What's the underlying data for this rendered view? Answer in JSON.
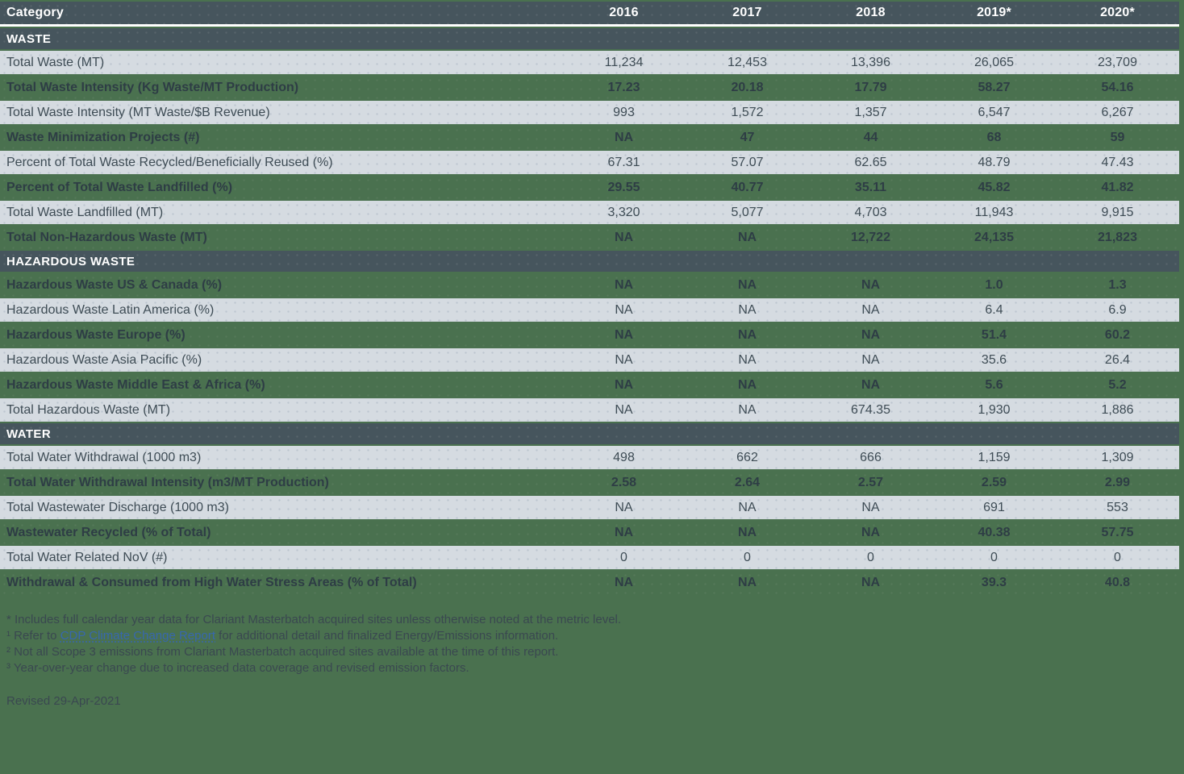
{
  "colors": {
    "page_background": "#4A714F",
    "header_background": "#46555D",
    "light_row_background": "#D5DBE1",
    "header_text": "#FFFFFF",
    "dark_text": "#3E4C55",
    "green_row_text": "#2E3D45",
    "link_blue": "#3767AE",
    "divider_white": "#FFFFFF"
  },
  "table": {
    "columns": [
      "Category",
      "2016",
      "2017",
      "2018",
      "2019*",
      "2020*"
    ],
    "sections": [
      {
        "title": "WASTE",
        "rows": [
          {
            "label": "Total Waste (MT)",
            "values": [
              "11,234",
              "12,453",
              "13,396",
              "26,065",
              "23,709"
            ]
          },
          {
            "label": "Total Waste Intensity (Kg Waste/MT Production)",
            "values": [
              "17.23",
              "20.18",
              "17.79",
              "58.27",
              "54.16"
            ]
          },
          {
            "label": "Total Waste Intensity (MT Waste/$B Revenue)",
            "values": [
              "993",
              "1,572",
              "1,357",
              "6,547",
              "6,267"
            ]
          },
          {
            "label": "Waste Minimization Projects (#)",
            "values": [
              "NA",
              "47",
              "44",
              "68",
              "59"
            ]
          },
          {
            "label": "Percent of Total Waste Recycled/Beneficially Reused (%)",
            "values": [
              "67.31",
              "57.07",
              "62.65",
              "48.79",
              "47.43"
            ]
          },
          {
            "label": "Percent of Total Waste Landfilled (%)",
            "values": [
              "29.55",
              "40.77",
              "35.11",
              "45.82",
              "41.82"
            ]
          },
          {
            "label": "Total Waste Landfilled (MT)",
            "values": [
              "3,320",
              "5,077",
              "4,703",
              "11,943",
              "9,915"
            ]
          },
          {
            "label": "Total Non-Hazardous Waste (MT)",
            "values": [
              "NA",
              "NA",
              "12,722",
              "24,135",
              "21,823"
            ]
          }
        ]
      },
      {
        "title": "HAZARDOUS WASTE",
        "rows": [
          {
            "label": "Hazardous Waste US & Canada (%)",
            "values": [
              "NA",
              "NA",
              "NA",
              "1.0",
              "1.3"
            ]
          },
          {
            "label": "Hazardous Waste Latin America (%)",
            "values": [
              "NA",
              "NA",
              "NA",
              "6.4",
              "6.9"
            ]
          },
          {
            "label": "Hazardous Waste Europe (%)",
            "values": [
              "NA",
              "NA",
              "NA",
              "51.4",
              "60.2"
            ]
          },
          {
            "label": "Hazardous Waste Asia Pacific (%)",
            "values": [
              "NA",
              "NA",
              "NA",
              "35.6",
              "26.4"
            ]
          },
          {
            "label": "Hazardous Waste Middle East & Africa (%)",
            "values": [
              "NA",
              "NA",
              "NA",
              "5.6",
              "5.2"
            ]
          },
          {
            "label": "Total Hazardous Waste (MT)",
            "values": [
              "NA",
              "NA",
              "674.35",
              "1,930",
              "1,886"
            ]
          }
        ]
      },
      {
        "title": "WATER",
        "rows": [
          {
            "label": "Total Water Withdrawal (1000 m3)",
            "values": [
              "498",
              "662",
              "666",
              "1,159",
              "1,309"
            ]
          },
          {
            "label": "Total Water Withdrawal Intensity (m3/MT Production)",
            "values": [
              "2.58",
              "2.64",
              "2.57",
              "2.59",
              "2.99"
            ]
          },
          {
            "label": "Total Wastewater Discharge (1000 m3)",
            "values": [
              "NA",
              "NA",
              "NA",
              "691",
              "553"
            ]
          },
          {
            "label": "Wastewater Recycled (% of Total)",
            "values": [
              "NA",
              "NA",
              "NA",
              "40.38",
              "57.75"
            ]
          },
          {
            "label": "Total Water Related NoV (#)",
            "values": [
              "0",
              "0",
              "0",
              "0",
              "0"
            ]
          },
          {
            "label": "Withdrawal & Consumed from High Water Stress Areas (% of Total)",
            "values": [
              "NA",
              "NA",
              "NA",
              "39.3",
              "40.8"
            ]
          }
        ]
      }
    ]
  },
  "footnotes": {
    "line1": "* Includes full calendar year data for Clariant Masterbatch acquired sites unless otherwise noted at the metric level.",
    "line2_prefix": "¹ Refer to ",
    "line2_link": "CDP Climate Change Report",
    "line2_suffix": " for additional detail and finalized Energy/Emissions information.",
    "line3": "² Not all Scope 3 emissions from Clariant Masterbatch acquired sites available at the time of this report.",
    "line4": "³ Year-over-year change due to increased data coverage and revised emission factors."
  },
  "revised": "Revised 29-Apr-2021"
}
